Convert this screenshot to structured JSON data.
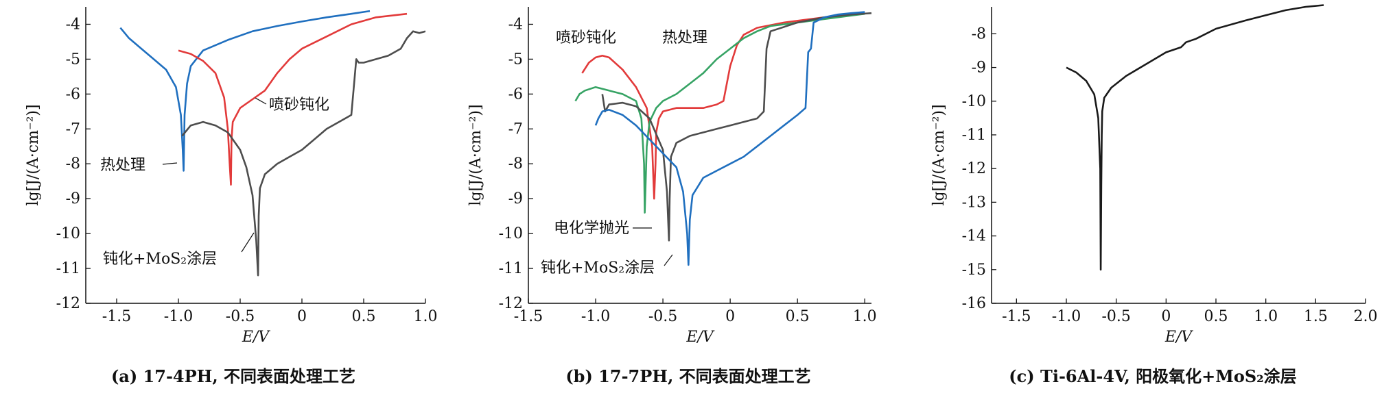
{
  "panels": [
    {
      "id": "a",
      "caption": "(a) 17-4PH, 不同表面处理工艺",
      "xlabel": "E/V",
      "ylabel": "lg[J/(A·cm⁻²)]",
      "xlim": [
        -1.75,
        1.0
      ],
      "ylim": [
        -12,
        -3.5
      ],
      "xticks": [
        "-1.5",
        "-1.0",
        "-0.5",
        "0",
        "0.5",
        "1.0"
      ],
      "xtick_values": [
        -1.5,
        -1.0,
        -0.5,
        0,
        0.5,
        1.0
      ],
      "yticks": [
        "-4",
        "-5",
        "-6",
        "-7",
        "-8",
        "-9",
        "-10",
        "-11",
        "-12"
      ],
      "ytick_values": [
        -4,
        -5,
        -6,
        -7,
        -8,
        -9,
        -10,
        -11,
        -12
      ],
      "annotations": [
        "喷砂钝化",
        "热处理",
        "钝化+MoS₂涂层"
      ]
    },
    {
      "id": "b",
      "caption": "(b) 17-7PH, 不同表面处理工艺",
      "xlabel": "E/V",
      "ylabel": "lg[J/(A·cm⁻²)]",
      "xlim": [
        -1.5,
        1.05
      ],
      "ylim": [
        -12,
        -3.5
      ],
      "xticks": [
        "-1.5",
        "-1.0",
        "-0.5",
        "0",
        "0.5",
        "1.0"
      ],
      "xtick_values": [
        -1.5,
        -1.0,
        -0.5,
        0,
        0.5,
        1.0
      ],
      "yticks": [
        "-4",
        "-5",
        "-6",
        "-7",
        "-8",
        "-9",
        "-10",
        "-11",
        "-12"
      ],
      "ytick_values": [
        -4,
        -5,
        -6,
        -7,
        -8,
        -9,
        -10,
        -11,
        -12
      ],
      "annotations": [
        "喷砂钝化",
        "热处理",
        "电化学抛光",
        "钝化+MoS₂涂层"
      ]
    },
    {
      "id": "c",
      "caption": "(c) Ti-6Al-4V, 阳极氧化+MoS₂涂层",
      "xlabel": "E/V",
      "ylabel": "lg[J/(A·cm⁻²)]",
      "xlim": [
        -1.75,
        2.0
      ],
      "ylim": [
        -16,
        -7.2
      ],
      "xticks": [
        "-1.5",
        "-1.0",
        "-0.5",
        "0",
        "0.5",
        "1.0",
        "1.5",
        "2.0"
      ],
      "xtick_values": [
        -1.5,
        -1.0,
        -0.5,
        0,
        0.5,
        1.0,
        1.5,
        2.0
      ],
      "yticks": [
        "-8",
        "-9",
        "-10",
        "-11",
        "-12",
        "-13",
        "-14",
        "-15",
        "-16"
      ],
      "ytick_values": [
        -8,
        -9,
        -10,
        -11,
        -12,
        -13,
        -14,
        -15,
        -16
      ],
      "annotations": []
    }
  ],
  "chart_data": [
    {
      "type": "line",
      "xlabel": "E/V",
      "ylabel": "lg[J/(A·cm⁻²)]",
      "xlim": [
        -1.75,
        1.0
      ],
      "ylim": [
        -12,
        -3.5
      ],
      "series": [
        {
          "name": "热处理",
          "color": "#1f6fbf",
          "x": [
            -1.47,
            -1.4,
            -1.3,
            -1.2,
            -1.1,
            -1.02,
            -0.98,
            -0.965,
            -0.958,
            -0.95,
            -0.93,
            -0.9,
            -0.8,
            -0.6,
            -0.4,
            -0.2,
            0.0,
            0.2,
            0.4,
            0.55
          ],
          "y": [
            -4.1,
            -4.4,
            -4.7,
            -5.0,
            -5.3,
            -5.8,
            -6.6,
            -7.6,
            -8.2,
            -6.6,
            -5.7,
            -5.2,
            -4.75,
            -4.45,
            -4.2,
            -4.05,
            -3.92,
            -3.8,
            -3.7,
            -3.62
          ]
        },
        {
          "name": "喷砂钝化",
          "color": "#e23a3a",
          "x": [
            -1.0,
            -0.9,
            -0.8,
            -0.7,
            -0.63,
            -0.6,
            -0.585,
            -0.575,
            -0.57,
            -0.56,
            -0.5,
            -0.4,
            -0.3,
            -0.2,
            -0.1,
            0.0,
            0.2,
            0.4,
            0.6,
            0.85
          ],
          "y": [
            -4.75,
            -4.85,
            -5.05,
            -5.4,
            -6.1,
            -7.0,
            -8.0,
            -8.6,
            -7.3,
            -6.8,
            -6.4,
            -6.15,
            -5.9,
            -5.4,
            -5.0,
            -4.7,
            -4.35,
            -4.0,
            -3.8,
            -3.7
          ]
        },
        {
          "name": "钝化+MoS₂涂层",
          "color": "#4d4d4d",
          "x": [
            -0.97,
            -0.9,
            -0.8,
            -0.7,
            -0.6,
            -0.5,
            -0.45,
            -0.4,
            -0.37,
            -0.355,
            -0.35,
            -0.34,
            -0.3,
            -0.2,
            -0.1,
            0.0,
            0.1,
            0.2,
            0.3,
            0.4,
            0.44,
            0.46,
            0.5,
            0.6,
            0.7,
            0.8,
            0.85,
            0.9,
            0.95,
            1.0
          ],
          "y": [
            -7.2,
            -6.9,
            -6.8,
            -6.9,
            -7.1,
            -7.6,
            -8.1,
            -8.9,
            -10.2,
            -11.2,
            -9.5,
            -8.7,
            -8.3,
            -8.0,
            -7.8,
            -7.6,
            -7.3,
            -7.0,
            -6.8,
            -6.6,
            -5.0,
            -5.1,
            -5.1,
            -5.0,
            -4.9,
            -4.7,
            -4.4,
            -4.2,
            -4.25,
            -4.2
          ]
        }
      ]
    },
    {
      "type": "line",
      "xlabel": "E/V",
      "ylabel": "lg[J/(A·cm⁻²)]",
      "xlim": [
        -1.5,
        1.05
      ],
      "ylim": [
        -12,
        -3.5
      ],
      "series": [
        {
          "name": "喷砂钝化",
          "color": "#e23a3a",
          "x": [
            -1.1,
            -1.05,
            -1.0,
            -0.95,
            -0.9,
            -0.8,
            -0.7,
            -0.62,
            -0.58,
            -0.565,
            -0.555,
            -0.55,
            -0.53,
            -0.5,
            -0.45,
            -0.4,
            -0.3,
            -0.2,
            -0.1,
            -0.05,
            0.0,
            0.05,
            0.1,
            0.2,
            0.4,
            0.6,
            0.8,
            1.0
          ],
          "y": [
            -5.4,
            -5.1,
            -4.95,
            -4.9,
            -4.95,
            -5.3,
            -5.8,
            -6.4,
            -7.5,
            -9.0,
            -8.0,
            -7.1,
            -6.7,
            -6.5,
            -6.45,
            -6.4,
            -6.4,
            -6.4,
            -6.3,
            -6.2,
            -5.2,
            -4.6,
            -4.3,
            -4.1,
            -3.95,
            -3.85,
            -3.75,
            -3.7
          ]
        },
        {
          "name": "热处理",
          "color": "#36a364",
          "x": [
            -1.15,
            -1.12,
            -1.08,
            -1.0,
            -0.9,
            -0.8,
            -0.7,
            -0.66,
            -0.64,
            -0.635,
            -0.62,
            -0.6,
            -0.55,
            -0.5,
            -0.4,
            -0.3,
            -0.2,
            -0.1,
            0.0,
            0.1,
            0.2,
            0.3,
            0.5,
            0.7,
            0.9,
            1.0
          ],
          "y": [
            -6.2,
            -6.0,
            -5.9,
            -5.8,
            -5.9,
            -6.0,
            -6.2,
            -6.7,
            -8.0,
            -9.4,
            -7.5,
            -6.8,
            -6.4,
            -6.2,
            -6.0,
            -5.7,
            -5.4,
            -5.0,
            -4.7,
            -4.4,
            -4.2,
            -4.05,
            -3.95,
            -3.85,
            -3.75,
            -3.7
          ]
        },
        {
          "name": "电化学抛光",
          "color": "#4d4d4d",
          "x": [
            -0.95,
            -0.93,
            -0.9,
            -0.8,
            -0.7,
            -0.6,
            -0.5,
            -0.47,
            -0.455,
            -0.45,
            -0.44,
            -0.4,
            -0.3,
            -0.2,
            -0.1,
            0.0,
            0.1,
            0.2,
            0.25,
            0.27,
            0.3,
            0.5,
            0.7,
            0.9,
            1.05
          ],
          "y": [
            -6.0,
            -6.5,
            -6.3,
            -6.25,
            -6.35,
            -6.7,
            -7.6,
            -8.8,
            -10.2,
            -9.0,
            -7.8,
            -7.4,
            -7.2,
            -7.1,
            -7.0,
            -6.9,
            -6.8,
            -6.7,
            -6.5,
            -4.7,
            -4.2,
            -3.95,
            -3.8,
            -3.72,
            -3.68
          ]
        },
        {
          "name": "钝化+MoS₂涂层",
          "color": "#1f6fbf",
          "x": [
            -1.0,
            -0.98,
            -0.95,
            -0.9,
            -0.8,
            -0.7,
            -0.6,
            -0.5,
            -0.4,
            -0.35,
            -0.32,
            -0.31,
            -0.3,
            -0.28,
            -0.2,
            -0.1,
            0.0,
            0.1,
            0.2,
            0.3,
            0.4,
            0.5,
            0.56,
            0.58,
            0.6,
            0.62,
            0.7,
            0.8,
            0.9,
            1.0
          ],
          "y": [
            -6.9,
            -6.7,
            -6.5,
            -6.45,
            -6.6,
            -6.9,
            -7.3,
            -7.7,
            -8.1,
            -8.8,
            -10.0,
            -10.9,
            -9.6,
            -8.9,
            -8.4,
            -8.2,
            -8.0,
            -7.8,
            -7.5,
            -7.2,
            -6.9,
            -6.6,
            -6.4,
            -4.8,
            -4.7,
            -3.95,
            -3.8,
            -3.72,
            -3.68,
            -3.65
          ]
        }
      ]
    },
    {
      "type": "line",
      "xlabel": "E/V",
      "ylabel": "lg[J/(A·cm⁻²)]",
      "xlim": [
        -1.75,
        2.0
      ],
      "ylim": [
        -16,
        -7.2
      ],
      "series": [
        {
          "name": "",
          "color": "#1a1a1a",
          "x": [
            -1.0,
            -0.9,
            -0.8,
            -0.72,
            -0.68,
            -0.66,
            -0.655,
            -0.65,
            -0.645,
            -0.64,
            -0.62,
            -0.55,
            -0.4,
            -0.2,
            0.0,
            0.15,
            0.2,
            0.3,
            0.5,
            0.8,
            1.0,
            1.2,
            1.4,
            1.58
          ],
          "y": [
            -9.0,
            -9.15,
            -9.4,
            -9.8,
            -10.5,
            -12.0,
            -15.0,
            -12.5,
            -11.0,
            -10.3,
            -9.9,
            -9.6,
            -9.25,
            -8.9,
            -8.55,
            -8.4,
            -8.25,
            -8.15,
            -7.85,
            -7.6,
            -7.45,
            -7.3,
            -7.2,
            -7.15
          ]
        }
      ]
    }
  ]
}
